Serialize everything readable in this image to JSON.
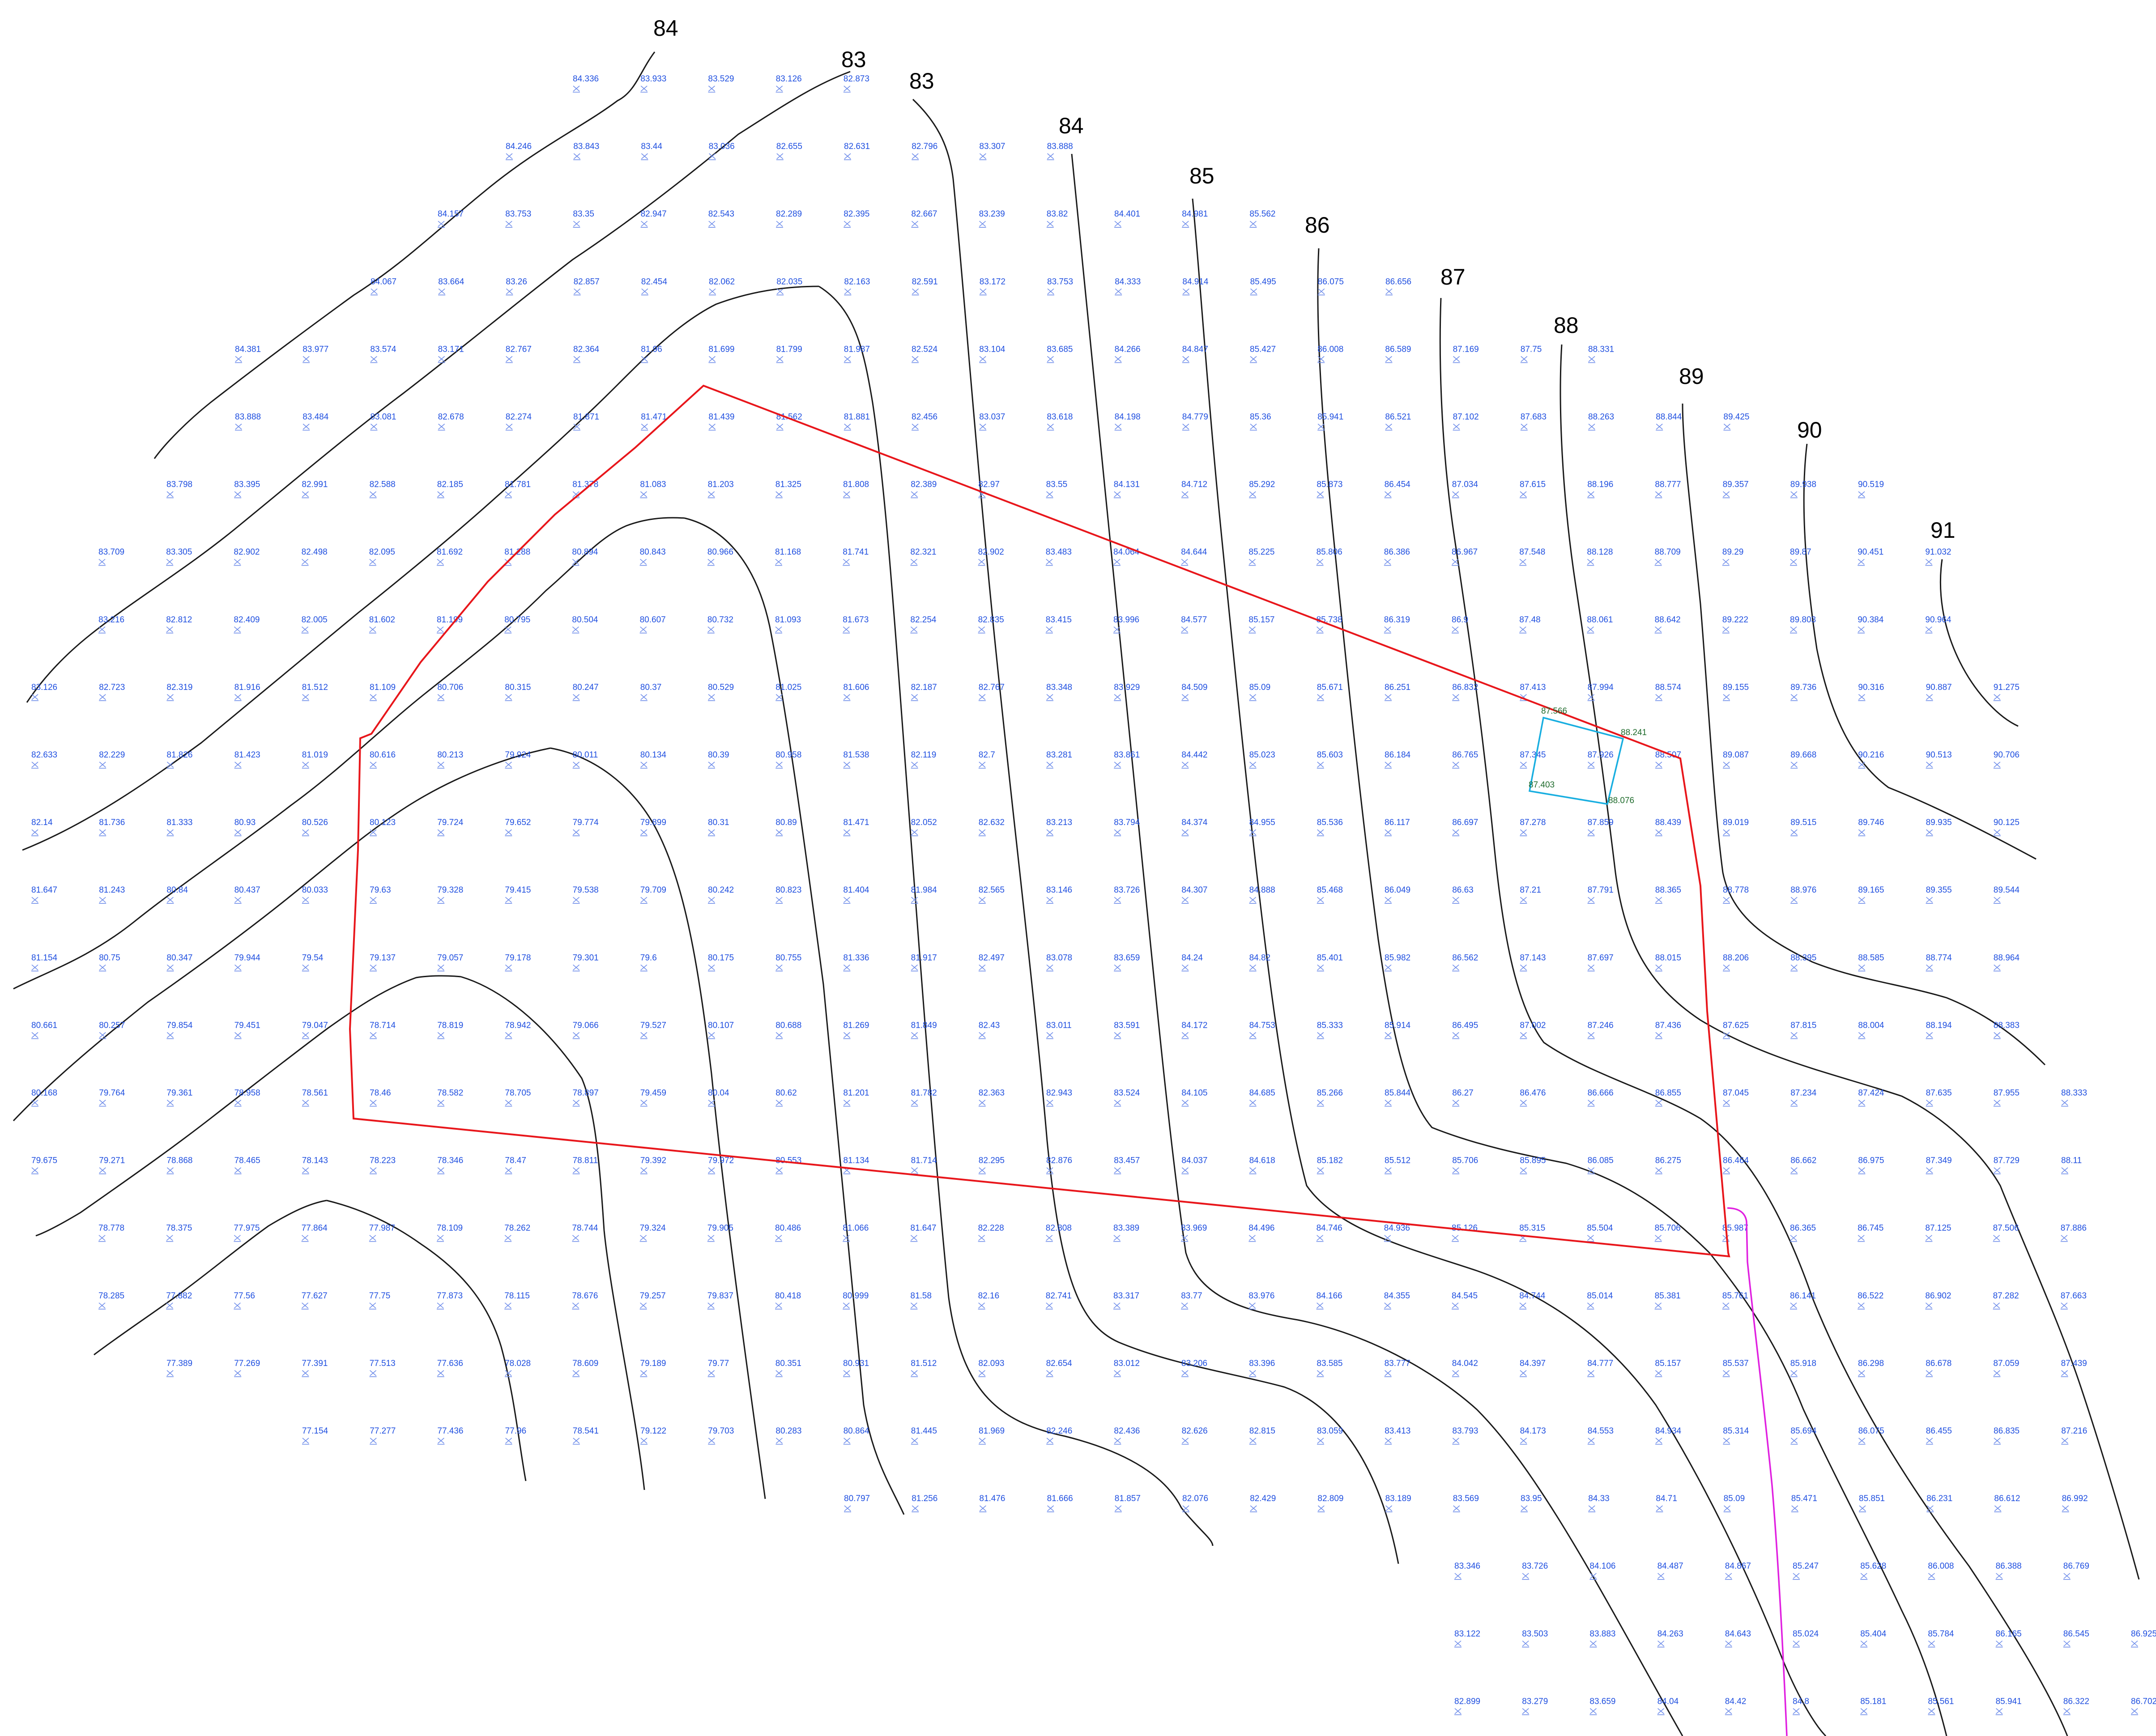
{
  "map": {
    "contour_labels": [
      "84",
      "83",
      "83",
      "84",
      "85",
      "86",
      "87",
      "88",
      "89",
      "90",
      "91"
    ],
    "spot_heights": [
      [
        "84.336",
        "83.933",
        "83.529",
        "83.126",
        "82.873"
      ],
      [
        "84.246",
        "83.843",
        "83.44",
        "83.036",
        "82.655",
        "82.631",
        "82.796",
        "83.307",
        "83.888"
      ],
      [
        "84.157",
        "83.753",
        "83.35",
        "82.947",
        "82.543",
        "82.289",
        "82.395",
        "82.667",
        "83.239",
        "83.82",
        "84.401",
        "84.981",
        "85.562"
      ],
      [
        "84.067",
        "83.664",
        "83.26",
        "82.857",
        "82.454",
        "82.062",
        "82.035",
        "82.163",
        "82.591",
        "83.172",
        "83.753",
        "84.333",
        "84.914",
        "85.495",
        "86.075",
        "86.656"
      ],
      [
        "84.381",
        "83.977",
        "83.574",
        "83.171",
        "82.767",
        "82.364",
        "81.96",
        "81.699",
        "81.799",
        "81.987",
        "82.524",
        "83.104",
        "83.685",
        "84.266",
        "84.847",
        "85.427",
        "86.008",
        "86.589",
        "87.169",
        "87.75",
        "88.331"
      ],
      [
        "83.888",
        "83.484",
        "83.081",
        "82.678",
        "82.274",
        "81.871",
        "81.471",
        "81.439",
        "81.562",
        "81.881",
        "82.456",
        "83.037",
        "83.618",
        "84.198",
        "84.779",
        "85.36",
        "85.941",
        "86.521",
        "87.102",
        "87.683",
        "88.263",
        "88.844",
        "89.425"
      ],
      [
        "83.798",
        "83.395",
        "82.991",
        "82.588",
        "82.185",
        "81.781",
        "81.378",
        "81.083",
        "81.203",
        "81.325",
        "81.808",
        "82.389",
        "82.97",
        "83.55",
        "84.131",
        "84.712",
        "85.292",
        "85.873",
        "86.454",
        "87.034",
        "87.615",
        "88.196",
        "88.777",
        "89.357",
        "89.938",
        "90.519"
      ],
      [
        "83.709",
        "83.305",
        "82.902",
        "82.498",
        "82.095",
        "81.692",
        "81.288",
        "80.894",
        "80.843",
        "80.966",
        "81.168",
        "81.741",
        "82.321",
        "82.902",
        "83.483",
        "84.064",
        "84.644",
        "85.225",
        "85.806",
        "86.386",
        "86.967",
        "87.548",
        "88.128",
        "88.709",
        "89.29",
        "89.87",
        "90.451",
        "91.032"
      ],
      [
        "83.216",
        "82.812",
        "82.409",
        "82.005",
        "81.602",
        "81.199",
        "80.795",
        "80.504",
        "80.607",
        "80.732",
        "81.093",
        "81.673",
        "82.254",
        "82.835",
        "83.415",
        "83.996",
        "84.577",
        "85.157",
        "85.738",
        "86.319",
        "86.9",
        "87.48",
        "88.061",
        "88.642",
        "89.222",
        "89.803",
        "90.384",
        "90.964"
      ],
      [
        "83.126",
        "82.723",
        "82.319",
        "81.916",
        "81.512",
        "81.109",
        "80.706",
        "80.315",
        "80.247",
        "80.37",
        "80.529",
        "81.025",
        "81.606",
        "82.187",
        "82.767",
        "83.348",
        "83.929",
        "84.509",
        "85.09",
        "85.671",
        "86.251",
        "86.832",
        "87.413",
        "87.994",
        "88.574",
        "89.155",
        "89.736",
        "90.316",
        "90.887",
        "91.275"
      ],
      [
        "82.633",
        "82.229",
        "81.826",
        "81.423",
        "81.019",
        "80.616",
        "80.213",
        "79.924",
        "80.011",
        "80.134",
        "80.39",
        "80.958",
        "81.538",
        "82.119",
        "82.7",
        "83.281",
        "83.861",
        "84.442",
        "85.023",
        "85.603",
        "86.184",
        "86.765",
        "87.345",
        "87.926",
        "88.507",
        "89.087",
        "89.668",
        "90.216",
        "90.513",
        "90.706"
      ],
      [
        "82.14",
        "81.736",
        "81.333",
        "80.93",
        "80.526",
        "80.123",
        "79.724",
        "79.652",
        "79.774",
        "79.899",
        "80.31",
        "80.89",
        "81.471",
        "82.052",
        "82.632",
        "83.213",
        "83.794",
        "84.374",
        "84.955",
        "85.536",
        "86.117",
        "86.697",
        "87.278",
        "87.859",
        "88.439",
        "89.019",
        "89.515",
        "89.746",
        "89.935",
        "90.125"
      ],
      [
        "81.647",
        "81.243",
        "80.84",
        "80.437",
        "80.033",
        "79.63",
        "79.328",
        "79.415",
        "79.538",
        "79.709",
        "80.242",
        "80.823",
        "81.404",
        "81.984",
        "82.565",
        "83.146",
        "83.726",
        "84.307",
        "84.888",
        "85.468",
        "86.049",
        "86.63",
        "87.21",
        "87.791",
        "88.365",
        "88.778",
        "88.976",
        "89.165",
        "89.355",
        "89.544"
      ],
      [
        "81.154",
        "80.75",
        "80.347",
        "79.944",
        "79.54",
        "79.137",
        "79.057",
        "79.178",
        "79.301",
        "79.6",
        "80.175",
        "80.755",
        "81.336",
        "81.917",
        "82.497",
        "83.078",
        "83.659",
        "84.24",
        "84.82",
        "85.401",
        "85.982",
        "86.562",
        "87.143",
        "87.697",
        "88.015",
        "88.206",
        "88.395",
        "88.585",
        "88.774",
        "88.964"
      ],
      [
        "80.661",
        "80.257",
        "79.854",
        "79.451",
        "79.047",
        "78.714",
        "78.819",
        "78.942",
        "79.066",
        "79.527",
        "80.107",
        "80.688",
        "81.269",
        "81.849",
        "82.43",
        "83.011",
        "83.591",
        "84.172",
        "84.753",
        "85.333",
        "85.914",
        "86.495",
        "87.002",
        "87.246",
        "87.436",
        "87.625",
        "87.815",
        "88.004",
        "88.194",
        "88.383"
      ],
      [
        "80.168",
        "79.764",
        "79.361",
        "78.958",
        "78.561",
        "78.46",
        "78.582",
        "78.705",
        "78.897",
        "79.459",
        "80.04",
        "80.62",
        "81.201",
        "81.782",
        "82.363",
        "82.943",
        "83.524",
        "84.105",
        "84.685",
        "85.266",
        "85.844",
        "86.27",
        "86.476",
        "86.666",
        "86.855",
        "87.045",
        "87.234",
        "87.424",
        "87.635",
        "87.955",
        "88.333"
      ],
      [
        "79.675",
        "79.271",
        "78.868",
        "78.465",
        "78.143",
        "78.223",
        "78.346",
        "78.47",
        "78.811",
        "79.392",
        "79.972",
        "80.553",
        "81.134",
        "81.714",
        "82.295",
        "82.876",
        "83.457",
        "84.037",
        "84.618",
        "85.182",
        "85.512",
        "85.706",
        "85.895",
        "86.085",
        "86.275",
        "86.464",
        "86.662",
        "86.975",
        "87.349",
        "87.729",
        "88.11"
      ],
      [
        "78.778",
        "78.375",
        "77.975",
        "77.864",
        "77.987",
        "78.109",
        "78.262",
        "78.744",
        "79.324",
        "79.905",
        "80.486",
        "81.066",
        "81.647",
        "82.228",
        "82.808",
        "83.389",
        "83.969",
        "84.496",
        "84.746",
        "84.936",
        "85.126",
        "85.315",
        "85.504",
        "85.706",
        "85.987",
        "86.365",
        "86.745",
        "87.125",
        "87.506",
        "87.886"
      ],
      [
        "78.285",
        "77.882",
        "77.56",
        "77.627",
        "77.75",
        "77.873",
        "78.115",
        "78.676",
        "79.257",
        "79.837",
        "80.418",
        "80.999",
        "81.58",
        "82.16",
        "82.741",
        "83.317",
        "83.77",
        "83.976",
        "84.166",
        "84.355",
        "84.545",
        "84.744",
        "85.014",
        "85.381",
        "85.761",
        "86.141",
        "86.522",
        "86.902",
        "87.282",
        "87.663"
      ],
      [
        "77.389",
        "77.269",
        "77.391",
        "77.513",
        "77.636",
        "78.028",
        "78.609",
        "79.189",
        "79.77",
        "80.351",
        "80.931",
        "81.512",
        "82.093",
        "82.654",
        "83.012",
        "83.206",
        "83.396",
        "83.585",
        "83.777",
        "84.042",
        "84.397",
        "84.777",
        "85.157",
        "85.537",
        "85.918",
        "86.298",
        "86.678",
        "87.059",
        "87.439"
      ],
      [
        "77.154",
        "77.277",
        "77.436",
        "77.96",
        "78.541",
        "79.122",
        "79.703",
        "80.283",
        "80.864",
        "81.445",
        "81.969",
        "82.246",
        "82.436",
        "82.626",
        "82.815",
        "83.059",
        "83.413",
        "83.793",
        "84.173",
        "84.553",
        "84.934",
        "85.314",
        "85.694",
        "86.075",
        "86.455",
        "86.835",
        "87.216"
      ],
      [
        "80.797",
        "81.256",
        "81.476",
        "81.666",
        "81.857",
        "82.076",
        "82.429",
        "82.809",
        "83.189",
        "83.569",
        "83.95",
        "84.33",
        "84.71",
        "85.09",
        "85.471",
        "85.851",
        "86.231",
        "86.612",
        "86.992"
      ],
      [
        "83.346",
        "83.726",
        "84.106",
        "84.487",
        "84.867",
        "85.247",
        "85.628",
        "86.008",
        "86.388",
        "86.769"
      ],
      [
        "83.122",
        "83.503",
        "83.883",
        "84.263",
        "84.643",
        "85.024",
        "85.404",
        "85.784",
        "86.165",
        "86.545",
        "86.925"
      ],
      [
        "82.899",
        "83.279",
        "83.659",
        "84.04",
        "84.42",
        "84.8",
        "85.181",
        "85.561",
        "85.941",
        "86.322",
        "86.702"
      ]
    ],
    "building_heights": [
      "87.566",
      "88.241",
      "87.403",
      "88.076"
    ],
    "colors": {
      "spot_text": "#1f4fe0",
      "contour": "#1a1a1a",
      "boundary": "#e8161b",
      "building": "#18aee0",
      "building_text": "#1f6b2c",
      "pipe": "#e020e0"
    }
  }
}
